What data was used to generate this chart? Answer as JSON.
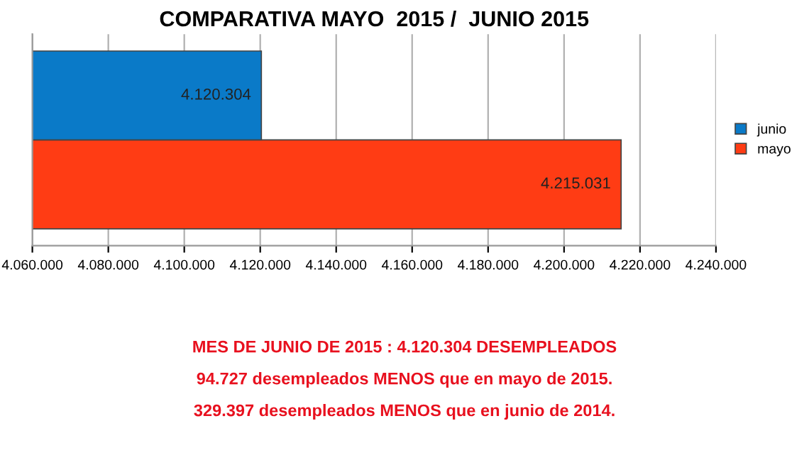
{
  "chart_data": {
    "type": "bar",
    "orientation": "horizontal",
    "title": "COMPARATIVA MAYO  2015 /  JUNIO 2015",
    "categories": [
      null
    ],
    "series": [
      {
        "name": "mayo",
        "color": "#ff3c14",
        "values": [
          4215031
        ],
        "value_labels": [
          "4.215.031"
        ]
      },
      {
        "name": "junio",
        "color": "#0a7ac8",
        "values": [
          4120304
        ],
        "value_labels": [
          "4.120.304"
        ]
      }
    ],
    "xlim": [
      4060000,
      4240000
    ],
    "xticks": [
      {
        "value": 4060000,
        "label": "4.060.000"
      },
      {
        "value": 4080000,
        "label": "4.080.000"
      },
      {
        "value": 4100000,
        "label": "4.100.000"
      },
      {
        "value": 4120000,
        "label": "4.120.000"
      },
      {
        "value": 4140000,
        "label": "4.140.000"
      },
      {
        "value": 4160000,
        "label": "4.160.000"
      },
      {
        "value": 4180000,
        "label": "4.180.000"
      },
      {
        "value": 4200000,
        "label": "4.200.000"
      },
      {
        "value": 4220000,
        "label": "4.220.000"
      },
      {
        "value": 4240000,
        "label": "4.240.000"
      }
    ],
    "grid": "x",
    "legend": "right",
    "annotations": [
      "MES DE JUNIO DE 2015 : 4.120.304 DESEMPLEADOS",
      "94.727 desempleados MENOS que en mayo de 2015.",
      "329.397 desempleados MENOS que en junio de 2014."
    ]
  }
}
